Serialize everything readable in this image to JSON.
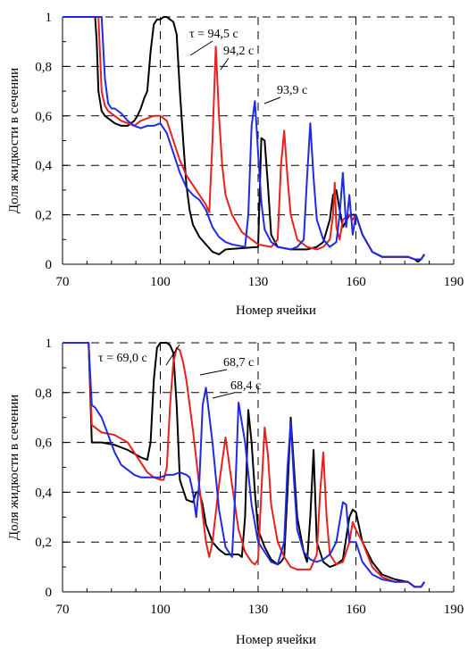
{
  "chart_data": [
    {
      "type": "line",
      "xlabel": "Номер ячейки",
      "ylabel": "Доля жидкости в сечении",
      "xlim": [
        70,
        190
      ],
      "ylim": [
        0,
        1
      ],
      "xticks": [
        70,
        100,
        130,
        160,
        190
      ],
      "xtick_labels": [
        "70",
        "100",
        "130",
        "160",
        "190"
      ],
      "yticks": [
        0,
        0.2,
        0.4,
        0.6,
        0.8,
        1
      ],
      "ytick_labels": [
        "0",
        "0,2",
        "0,4",
        "0,6",
        "0,8",
        "1"
      ],
      "grid": "dashed",
      "series": [
        {
          "name": "τ = 94,5 с",
          "color": "#000000",
          "x": [
            70,
            80,
            80.5,
            81,
            82,
            83,
            84,
            85,
            86,
            88,
            90,
            92,
            93,
            94,
            95,
            96,
            97,
            98,
            99,
            100,
            101,
            102,
            103,
            104,
            105,
            106,
            107,
            108,
            109,
            110,
            112,
            114,
            116,
            118,
            120,
            125,
            130,
            131,
            132,
            133,
            134,
            136,
            140,
            145,
            148,
            150,
            152,
            153,
            154,
            155,
            156,
            158,
            160,
            162,
            165,
            168,
            172,
            176,
            178,
            179,
            180,
            181
          ],
          "y": [
            1,
            1,
            0.9,
            0.7,
            0.62,
            0.6,
            0.59,
            0.58,
            0.57,
            0.56,
            0.56,
            0.58,
            0.6,
            0.63,
            0.67,
            0.7,
            0.86,
            0.97,
            0.99,
            0.99,
            1.0,
            1.0,
            0.99,
            0.98,
            0.93,
            0.7,
            0.5,
            0.32,
            0.22,
            0.16,
            0.11,
            0.08,
            0.05,
            0.04,
            0.06,
            0.065,
            0.07,
            0.51,
            0.5,
            0.32,
            0.12,
            0.07,
            0.06,
            0.06,
            0.07,
            0.09,
            0.18,
            0.28,
            0.3,
            0.22,
            0.15,
            0.2,
            0.2,
            0.12,
            0.05,
            0.03,
            0.03,
            0.03,
            0.02,
            0.01,
            0.02,
            0.04
          ]
        },
        {
          "name": "94,2 с",
          "color": "#e8211f",
          "x": [
            70,
            81,
            81.5,
            82,
            83,
            84,
            86,
            88,
            90,
            92,
            94,
            96,
            98,
            100,
            102,
            104,
            106,
            108,
            110,
            112,
            114,
            115,
            116,
            117,
            118,
            119,
            120,
            122,
            125,
            128,
            130,
            134,
            136,
            137,
            138,
            139,
            140,
            142,
            145,
            148,
            150,
            152,
            153,
            153.5,
            154,
            155,
            156,
            158,
            159,
            160,
            162,
            165,
            168,
            172,
            176,
            178,
            180,
            181
          ],
          "y": [
            1,
            1,
            0.85,
            0.7,
            0.64,
            0.62,
            0.6,
            0.58,
            0.57,
            0.56,
            0.58,
            0.59,
            0.6,
            0.6,
            0.58,
            0.5,
            0.42,
            0.36,
            0.32,
            0.28,
            0.24,
            0.21,
            0.5,
            0.88,
            0.6,
            0.4,
            0.28,
            0.2,
            0.13,
            0.1,
            0.08,
            0.07,
            0.1,
            0.4,
            0.54,
            0.35,
            0.2,
            0.1,
            0.07,
            0.06,
            0.07,
            0.1,
            0.2,
            0.33,
            0.15,
            0.1,
            0.18,
            0.2,
            0.18,
            0.2,
            0.12,
            0.05,
            0.03,
            0.03,
            0.03,
            0.02,
            0.02,
            0.04
          ]
        },
        {
          "name": "93,9 с",
          "color": "#1f2be0",
          "x": [
            70,
            82,
            83,
            84,
            85,
            86,
            88,
            90,
            92,
            94,
            96,
            98,
            100,
            102,
            104,
            106,
            108,
            110,
            112,
            114,
            116,
            118,
            120,
            122,
            124,
            126,
            127,
            128,
            129,
            130,
            131,
            132,
            134,
            136,
            140,
            142,
            144,
            145,
            146,
            147,
            148,
            150,
            152,
            154,
            155,
            156,
            157,
            158,
            159,
            160,
            162,
            165,
            168,
            172,
            176,
            178,
            180,
            181
          ],
          "y": [
            1,
            1,
            0.75,
            0.65,
            0.63,
            0.63,
            0.61,
            0.58,
            0.56,
            0.55,
            0.56,
            0.56,
            0.57,
            0.53,
            0.45,
            0.37,
            0.31,
            0.28,
            0.26,
            0.22,
            0.15,
            0.11,
            0.09,
            0.08,
            0.075,
            0.07,
            0.2,
            0.56,
            0.66,
            0.45,
            0.25,
            0.14,
            0.09,
            0.07,
            0.06,
            0.07,
            0.1,
            0.35,
            0.57,
            0.35,
            0.18,
            0.1,
            0.07,
            0.09,
            0.2,
            0.37,
            0.15,
            0.28,
            0.12,
            0.2,
            0.12,
            0.05,
            0.03,
            0.03,
            0.03,
            0.02,
            0.02,
            0.04
          ]
        }
      ],
      "annotations": [
        "τ = 94,5 с",
        "94,2 с",
        "93,9 с"
      ]
    },
    {
      "type": "line",
      "xlabel": "Номер ячейки",
      "ylabel": "Доля жидкости в сечении",
      "xlim": [
        70,
        190
      ],
      "ylim": [
        0,
        1
      ],
      "xticks": [
        70,
        100,
        130,
        160,
        190
      ],
      "xtick_labels": [
        "70",
        "100",
        "130",
        "160",
        "190"
      ],
      "yticks": [
        0,
        0.2,
        0.4,
        0.6,
        0.8,
        1
      ],
      "ytick_labels": [
        "0",
        "0,2",
        "0,4",
        "0,6",
        "0,8",
        "1"
      ],
      "grid": "dashed",
      "series": [
        {
          "name": "τ = 69,0 с",
          "color": "#000000",
          "x": [
            70,
            78,
            79,
            82,
            86,
            90,
            94,
            96,
            97,
            98,
            99,
            100,
            101,
            102,
            103,
            104,
            105,
            106,
            108,
            110,
            111,
            112,
            113,
            114,
            116,
            118,
            120,
            122,
            124,
            125,
            126,
            127,
            128,
            129,
            130,
            132,
            134,
            136,
            137,
            138,
            139,
            140,
            142,
            144,
            145,
            146,
            147,
            148,
            150,
            152,
            154,
            156,
            158,
            159,
            160,
            162,
            165,
            168,
            172,
            176,
            178,
            180,
            181
          ],
          "y": [
            1,
            1,
            0.6,
            0.6,
            0.59,
            0.57,
            0.54,
            0.53,
            0.6,
            0.85,
            0.98,
            1.0,
            1.0,
            1.0,
            0.99,
            0.96,
            0.75,
            0.45,
            0.37,
            0.36,
            0.4,
            0.4,
            0.35,
            0.27,
            0.2,
            0.17,
            0.15,
            0.15,
            0.15,
            0.14,
            0.3,
            0.73,
            0.6,
            0.4,
            0.25,
            0.18,
            0.13,
            0.11,
            0.12,
            0.14,
            0.4,
            0.7,
            0.3,
            0.16,
            0.12,
            0.3,
            0.57,
            0.2,
            0.12,
            0.1,
            0.11,
            0.13,
            0.3,
            0.33,
            0.32,
            0.2,
            0.12,
            0.07,
            0.05,
            0.04,
            0.02,
            0.02,
            0.04
          ]
        },
        {
          "name": "68,7 с",
          "color": "#e8211f",
          "x": [
            70,
            78,
            79,
            82,
            86,
            90,
            92,
            94,
            96,
            98,
            100,
            101,
            102,
            103,
            104,
            105,
            106,
            107,
            108,
            110,
            112,
            114,
            115,
            116,
            118,
            120,
            122,
            124,
            126,
            128,
            129,
            130,
            131,
            132,
            133,
            134,
            136,
            138,
            140,
            142,
            146,
            148,
            149,
            150,
            151,
            152,
            154,
            156,
            158,
            159,
            160,
            162,
            165,
            168,
            172,
            176,
            178,
            180,
            181
          ],
          "y": [
            1,
            1,
            0.67,
            0.64,
            0.63,
            0.6,
            0.56,
            0.52,
            0.48,
            0.46,
            0.45,
            0.45,
            0.5,
            0.75,
            0.92,
            0.98,
            0.97,
            0.92,
            0.85,
            0.65,
            0.42,
            0.2,
            0.14,
            0.2,
            0.43,
            0.62,
            0.43,
            0.25,
            0.16,
            0.12,
            0.11,
            0.13,
            0.4,
            0.66,
            0.55,
            0.35,
            0.2,
            0.14,
            0.1,
            0.09,
            0.09,
            0.15,
            0.4,
            0.56,
            0.3,
            0.15,
            0.11,
            0.12,
            0.2,
            0.28,
            0.25,
            0.2,
            0.1,
            0.06,
            0.04,
            0.04,
            0.02,
            0.02,
            0.04
          ]
        },
        {
          "name": "68,4 с",
          "color": "#1f2be0",
          "x": [
            70,
            78,
            79,
            80,
            82,
            84,
            86,
            88,
            90,
            92,
            94,
            96,
            98,
            100,
            102,
            104,
            106,
            108,
            109,
            110,
            111,
            112,
            113,
            114,
            116,
            118,
            120,
            122,
            123,
            124,
            126,
            128,
            130,
            134,
            136,
            138,
            139,
            140,
            141,
            142,
            144,
            146,
            148,
            150,
            152,
            154,
            156,
            157,
            158,
            160,
            162,
            165,
            168,
            172,
            176,
            178,
            180,
            181
          ],
          "y": [
            1,
            1,
            0.75,
            0.74,
            0.7,
            0.63,
            0.56,
            0.51,
            0.49,
            0.47,
            0.46,
            0.46,
            0.46,
            0.46,
            0.47,
            0.47,
            0.48,
            0.47,
            0.46,
            0.4,
            0.3,
            0.45,
            0.75,
            0.82,
            0.6,
            0.33,
            0.18,
            0.14,
            0.4,
            0.76,
            0.6,
            0.35,
            0.2,
            0.12,
            0.11,
            0.2,
            0.5,
            0.68,
            0.45,
            0.25,
            0.16,
            0.13,
            0.12,
            0.13,
            0.15,
            0.2,
            0.36,
            0.35,
            0.2,
            0.2,
            0.12,
            0.07,
            0.05,
            0.04,
            0.04,
            0.02,
            0.02,
            0.04
          ]
        }
      ],
      "annotations": [
        "τ = 69,0 с",
        "68,7 с",
        "68,4 с"
      ]
    }
  ]
}
